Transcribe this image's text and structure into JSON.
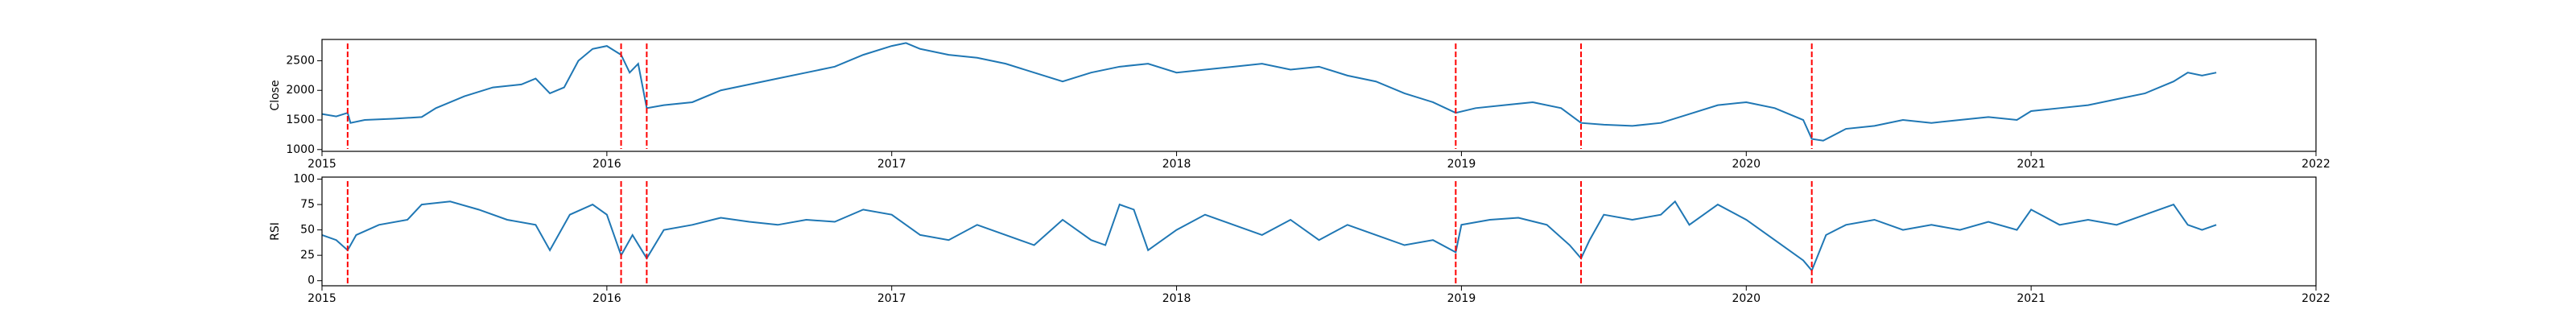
{
  "chart_data": [
    {
      "type": "line",
      "ylabel": "Close",
      "color": "#1f77b4",
      "x": [
        2015.0,
        2015.05,
        2015.09,
        2015.1,
        2015.15,
        2015.25,
        2015.35,
        2015.4,
        2015.5,
        2015.6,
        2015.7,
        2015.75,
        2015.8,
        2015.85,
        2015.9,
        2015.95,
        2016.0,
        2016.05,
        2016.08,
        2016.11,
        2016.14,
        2016.2,
        2016.3,
        2016.4,
        2016.5,
        2016.6,
        2016.7,
        2016.8,
        2016.9,
        2017.0,
        2017.05,
        2017.1,
        2017.2,
        2017.3,
        2017.4,
        2017.5,
        2017.6,
        2017.7,
        2017.8,
        2017.9,
        2018.0,
        2018.1,
        2018.2,
        2018.3,
        2018.4,
        2018.5,
        2018.6,
        2018.7,
        2018.8,
        2018.9,
        2018.98,
        2019.05,
        2019.15,
        2019.25,
        2019.35,
        2019.42,
        2019.5,
        2019.6,
        2019.7,
        2019.8,
        2019.9,
        2020.0,
        2020.1,
        2020.2,
        2020.23,
        2020.27,
        2020.35,
        2020.45,
        2020.55,
        2020.65,
        2020.75,
        2020.85,
        2020.95,
        2021.0,
        2021.1,
        2021.2,
        2021.3,
        2021.4,
        2021.5,
        2021.55,
        2021.6,
        2021.65
      ],
      "values": [
        1600,
        1560,
        1620,
        1450,
        1500,
        1520,
        1550,
        1700,
        1900,
        2050,
        2100,
        2200,
        1950,
        2050,
        2500,
        2700,
        2750,
        2600,
        2300,
        2450,
        1700,
        1750,
        1800,
        2000,
        2100,
        2200,
        2300,
        2400,
        2600,
        2750,
        2800,
        2700,
        2600,
        2550,
        2450,
        2300,
        2150,
        2300,
        2400,
        2450,
        2300,
        2350,
        2400,
        2450,
        2350,
        2400,
        2250,
        2150,
        1950,
        1800,
        1620,
        1700,
        1750,
        1800,
        1700,
        1450,
        1420,
        1400,
        1450,
        1600,
        1750,
        1800,
        1700,
        1500,
        1180,
        1150,
        1350,
        1400,
        1500,
        1450,
        1500,
        1550,
        1500,
        1650,
        1700,
        1750,
        1850,
        1950,
        2150,
        2300,
        2250,
        2300
      ],
      "xlim": [
        2015,
        2022
      ],
      "xticks": [
        2015,
        2016,
        2017,
        2018,
        2019,
        2020,
        2021,
        2022
      ],
      "ylim": [
        970,
        2860
      ],
      "yticks": [
        1000,
        1500,
        2000,
        2500
      ],
      "vlines": [
        2015.09,
        2016.05,
        2016.14,
        2018.98,
        2019.42,
        2020.23
      ],
      "vline_color": "#ff0000"
    },
    {
      "type": "line",
      "ylabel": "RSI",
      "color": "#1f77b4",
      "x": [
        2015.0,
        2015.05,
        2015.09,
        2015.12,
        2015.2,
        2015.3,
        2015.35,
        2015.45,
        2015.55,
        2015.65,
        2015.75,
        2015.8,
        2015.87,
        2015.95,
        2016.0,
        2016.05,
        2016.09,
        2016.14,
        2016.2,
        2016.3,
        2016.4,
        2016.5,
        2016.6,
        2016.7,
        2016.8,
        2016.9,
        2017.0,
        2017.1,
        2017.2,
        2017.3,
        2017.4,
        2017.5,
        2017.6,
        2017.7,
        2017.75,
        2017.8,
        2017.85,
        2017.9,
        2018.0,
        2018.1,
        2018.2,
        2018.3,
        2018.4,
        2018.5,
        2018.6,
        2018.7,
        2018.8,
        2018.9,
        2018.98,
        2019.0,
        2019.1,
        2019.2,
        2019.3,
        2019.38,
        2019.42,
        2019.45,
        2019.5,
        2019.6,
        2019.7,
        2019.75,
        2019.8,
        2019.9,
        2020.0,
        2020.1,
        2020.2,
        2020.23,
        2020.28,
        2020.35,
        2020.45,
        2020.55,
        2020.65,
        2020.75,
        2020.85,
        2020.95,
        2021.0,
        2021.1,
        2021.2,
        2021.3,
        2021.4,
        2021.5,
        2021.55,
        2021.6,
        2021.65
      ],
      "values": [
        45,
        40,
        30,
        45,
        55,
        60,
        75,
        78,
        70,
        60,
        55,
        30,
        65,
        75,
        65,
        25,
        45,
        22,
        50,
        55,
        62,
        58,
        55,
        60,
        58,
        70,
        65,
        45,
        40,
        55,
        45,
        35,
        60,
        40,
        35,
        75,
        70,
        30,
        50,
        65,
        55,
        45,
        60,
        40,
        55,
        45,
        35,
        40,
        28,
        55,
        60,
        62,
        55,
        35,
        22,
        40,
        65,
        60,
        65,
        78,
        55,
        75,
        60,
        40,
        20,
        10,
        45,
        55,
        60,
        50,
        55,
        50,
        58,
        50,
        70,
        55,
        60,
        55,
        65,
        75,
        55,
        50,
        55
      ],
      "xlim": [
        2015,
        2022
      ],
      "xticks": [
        2015,
        2016,
        2017,
        2018,
        2019,
        2020,
        2021,
        2022
      ],
      "ylim": [
        -5,
        102
      ],
      "yticks": [
        0,
        25,
        50,
        75,
        100
      ],
      "vlines": [
        2015.09,
        2016.05,
        2016.14,
        2018.98,
        2019.42,
        2020.23
      ],
      "vline_color": "#ff0000"
    }
  ]
}
